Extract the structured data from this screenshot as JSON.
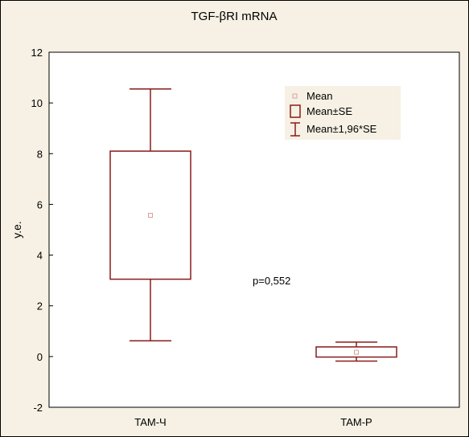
{
  "colors": {
    "series": "#8b1a1a",
    "mean_marker": "#d9a0a0",
    "background": "#f6f1e4",
    "plot_background": "#ffffff"
  },
  "chart_data": {
    "type": "box",
    "title": "TGF-βRI mRNA",
    "xlabel": "",
    "ylabel": "y.e.",
    "ylim": [
      -2,
      12
    ],
    "yticks": [
      -2,
      0,
      2,
      4,
      6,
      8,
      10,
      12
    ],
    "grid": false,
    "legend_position": "top-right",
    "categories": [
      "TAM-Ч",
      "TAM-P"
    ],
    "mean": [
      5.57,
      0.17
    ],
    "se_low": [
      3.05,
      -0.02
    ],
    "se_high": [
      8.1,
      0.38
    ],
    "ci_low": [
      0.62,
      -0.18
    ],
    "ci_high": [
      10.55,
      0.57
    ],
    "legend": [
      "Mean",
      "Mean±SE",
      "Mean±1,96*SE"
    ],
    "annotations": [
      {
        "text": "p=0,552"
      }
    ]
  }
}
